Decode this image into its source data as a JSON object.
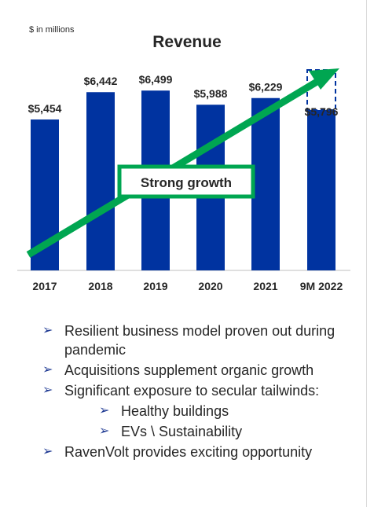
{
  "header": {
    "units_note": "$ in millions",
    "title": "Revenue"
  },
  "chart_data": {
    "type": "bar",
    "title": "Revenue",
    "categories": [
      "2017",
      "2018",
      "2019",
      "2020",
      "2021",
      "9M 2022"
    ],
    "values": [
      5454,
      6442,
      6499,
      5988,
      6229,
      5796
    ],
    "value_labels": [
      "$5,454",
      "$6,442",
      "$6,499",
      "$5,988",
      "$6,229",
      "$5,796"
    ],
    "ylim": [
      0,
      7500
    ],
    "grid": false,
    "legend": "none",
    "bar_color": "#0033a0",
    "dashed_last_box": true,
    "annotation": {
      "text": "Strong growth",
      "color": "#00a651"
    }
  },
  "bullets": [
    {
      "level": 1,
      "text": "Resilient business model proven out during pandemic"
    },
    {
      "level": 1,
      "text": "Acquisitions supplement organic growth"
    },
    {
      "level": 1,
      "text": "Significant exposure to secular tailwinds:"
    },
    {
      "level": 2,
      "text": "Healthy buildings"
    },
    {
      "level": 2,
      "text": "EVs \\ Sustainability"
    },
    {
      "level": 1,
      "text": "RavenVolt provides exciting opportunity"
    }
  ],
  "icons": {
    "bullet": "arrow-bullet-icon"
  }
}
